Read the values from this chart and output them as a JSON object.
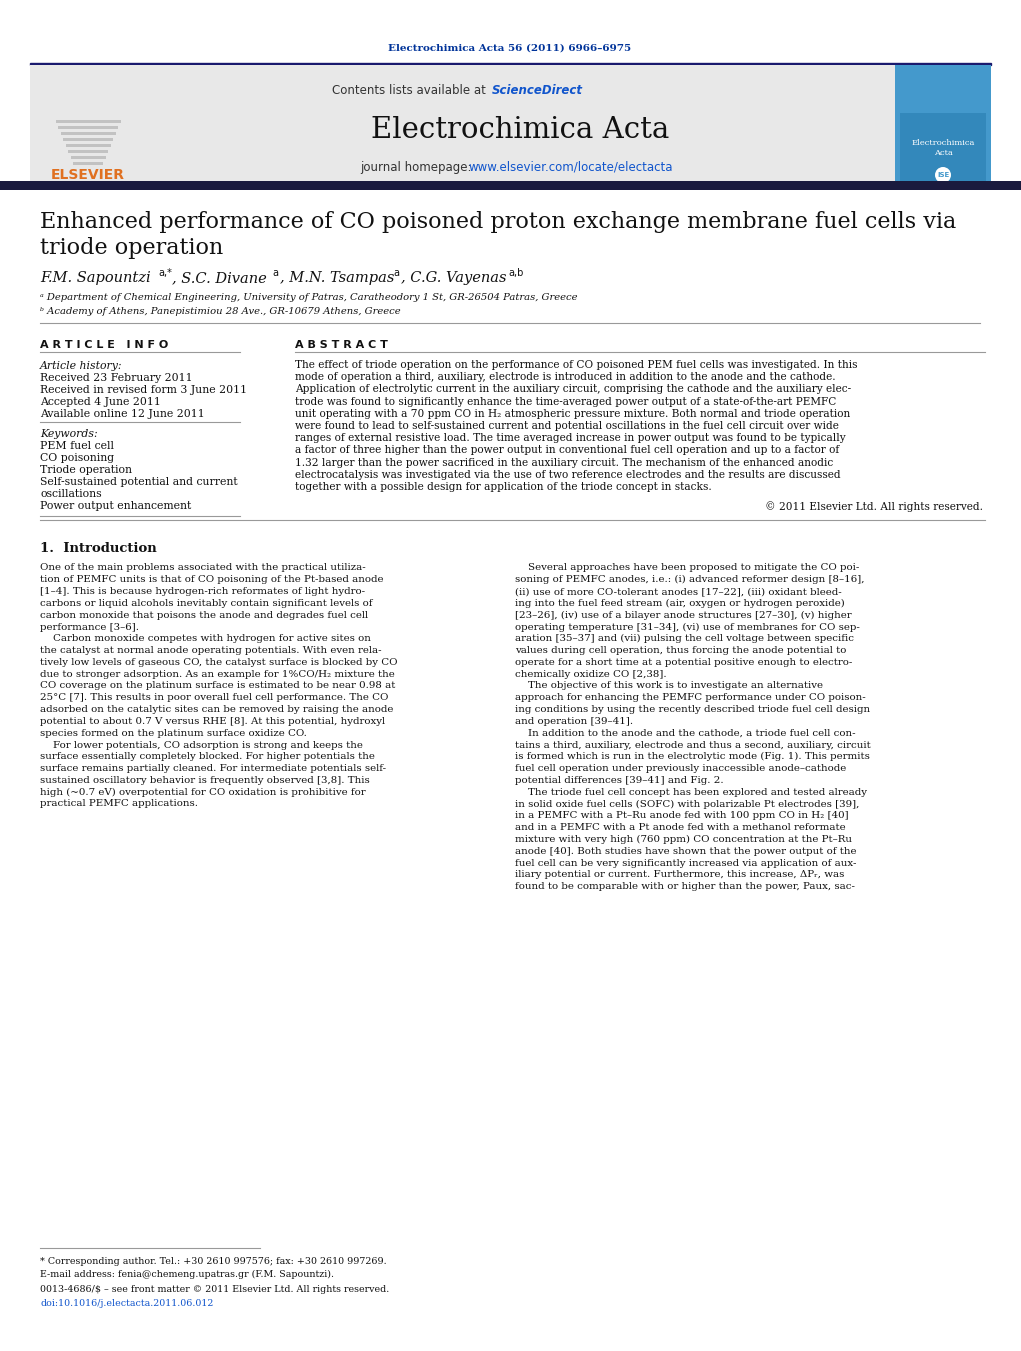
{
  "journal_ref": "Electrochimica Acta 56 (2011) 6966–6975",
  "contents_text": "Contents lists available at ",
  "sciencedirect_text": "ScienceDirect",
  "journal_name": "Electrochimica Acta",
  "homepage_text": "journal homepage: ",
  "homepage_url": "www.elsevier.com/locate/electacta",
  "title_line1": "Enhanced performance of CO poisoned proton exchange membrane fuel cells via",
  "title_line2": "triode operation",
  "affil_a": "ᵃ Department of Chemical Engineering, University of Patras, Caratheodory 1 St, GR-26504 Patras, Greece",
  "affil_b": "ᵇ Academy of Athens, Panepistimiou 28 Ave., GR-10679 Athens, Greece",
  "article_info_title": "A R T I C L E   I N F O",
  "article_history_label": "Article history:",
  "received": "Received 23 February 2011",
  "revised": "Received in revised form 3 June 2011",
  "accepted": "Accepted 4 June 2011",
  "available": "Available online 12 June 2011",
  "keywords_label": "Keywords:",
  "keyword1": "PEM fuel cell",
  "keyword2": "CO poisoning",
  "keyword3": "Triode operation",
  "keyword4a": "Self-sustained potential and current",
  "keyword4b": "oscillations",
  "keyword5": "Power output enhancement",
  "abstract_title": "A B S T R A C T",
  "abstract_lines": [
    "The effect of triode operation on the performance of CO poisoned PEM fuel cells was investigated. In this",
    "mode of operation a third, auxiliary, electrode is introduced in addition to the anode and the cathode.",
    "Application of electrolytic current in the auxiliary circuit, comprising the cathode and the auxiliary elec-",
    "trode was found to significantly enhance the time-averaged power output of a state-of-the-art PEMFC",
    "unit operating with a 70 ppm CO in H₂ atmospheric pressure mixture. Both normal and triode operation",
    "were found to lead to self-sustained current and potential oscillations in the fuel cell circuit over wide",
    "ranges of external resistive load. The time averaged increase in power output was found to be typically",
    "a factor of three higher than the power output in conventional fuel cell operation and up to a factor of",
    "1.32 larger than the power sacrificed in the auxiliary circuit. The mechanism of the enhanced anodic",
    "electrocatalysis was investigated via the use of two reference electrodes and the results are discussed",
    "together with a possible design for application of the triode concept in stacks."
  ],
  "copyright": "© 2011 Elsevier Ltd. All rights reserved.",
  "intro_title": "1.  Introduction",
  "intro_col1_lines": [
    "One of the main problems associated with the practical utiliza-",
    "tion of PEMFC units is that of CO poisoning of the Pt-based anode",
    "[1–4]. This is because hydrogen-rich reformates of light hydro-",
    "carbons or liquid alcohols inevitably contain significant levels of",
    "carbon monoxide that poisons the anode and degrades fuel cell",
    "performance [3–6].",
    "    Carbon monoxide competes with hydrogen for active sites on",
    "the catalyst at normal anode operating potentials. With even rela-",
    "tively low levels of gaseous CO, the catalyst surface is blocked by CO",
    "due to stronger adsorption. As an example for 1%CO/H₂ mixture the",
    "CO coverage on the platinum surface is estimated to be near 0.98 at",
    "25°C [7]. This results in poor overall fuel cell performance. The CO",
    "adsorbed on the catalytic sites can be removed by raising the anode",
    "potential to about 0.7 V versus RHE [8]. At this potential, hydroxyl",
    "species formed on the platinum surface oxidize CO.",
    "    For lower potentials, CO adsorption is strong and keeps the",
    "surface essentially completely blocked. For higher potentials the",
    "surface remains partially cleaned. For intermediate potentials self-",
    "sustained oscillatory behavior is frequently observed [3,8]. This",
    "high (~0.7 eV) overpotential for CO oxidation is prohibitive for",
    "practical PEMFC applications."
  ],
  "intro_col2_lines": [
    "    Several approaches have been proposed to mitigate the CO poi-",
    "soning of PEMFC anodes, i.e.: (i) advanced reformer design [8–16],",
    "(ii) use of more CO-tolerant anodes [17–22], (iii) oxidant bleed-",
    "ing into the fuel feed stream (air, oxygen or hydrogen peroxide)",
    "[23–26], (iv) use of a bilayer anode structures [27–30], (v) higher",
    "operating temperature [31–34], (vi) use of membranes for CO sep-",
    "aration [35–37] and (vii) pulsing the cell voltage between specific",
    "values during cell operation, thus forcing the anode potential to",
    "operate for a short time at a potential positive enough to electro-",
    "chemically oxidize CO [2,38].",
    "    The objective of this work is to investigate an alternative",
    "approach for enhancing the PEMFC performance under CO poison-",
    "ing conditions by using the recently described triode fuel cell design",
    "and operation [39–41].",
    "    In addition to the anode and the cathode, a triode fuel cell con-",
    "tains a third, auxiliary, electrode and thus a second, auxiliary, circuit",
    "is formed which is run in the electrolytic mode (Fig. 1). This permits",
    "fuel cell operation under previously inaccessible anode–cathode",
    "potential differences [39–41] and Fig. 2.",
    "    The triode fuel cell concept has been explored and tested already",
    "in solid oxide fuel cells (SOFC) with polarizable Pt electrodes [39],",
    "in a PEMFC with a Pt–Ru anode fed with 100 ppm CO in H₂ [40]",
    "and in a PEMFC with a Pt anode fed with a methanol reformate",
    "mixture with very high (760 ppm) CO concentration at the Pt–Ru",
    "anode [40]. Both studies have shown that the power output of the",
    "fuel cell can be very significantly increased via application of aux-",
    "iliary potential or current. Furthermore, this increase, ΔPᵣ, was",
    "found to be comparable with or higher than the power, Paux, sac-"
  ],
  "footnote_star": "* Corresponding author. Tel.: +30 2610 997576; fax: +30 2610 997269.",
  "footnote_email": "E-mail address: fenia@chemeng.upatras.gr (F.M. Sapountzi).",
  "footnote_issn": "0013-4686/$ – see front matter © 2011 Elsevier Ltd. All rights reserved.",
  "footnote_doi": "doi:10.1016/j.electacta.2011.06.012",
  "bg_color": "#ffffff",
  "link_blue": "#1155cc",
  "elsevier_orange": "#e07020",
  "dark_blue": "#003399",
  "ise_blue": "#4499cc"
}
